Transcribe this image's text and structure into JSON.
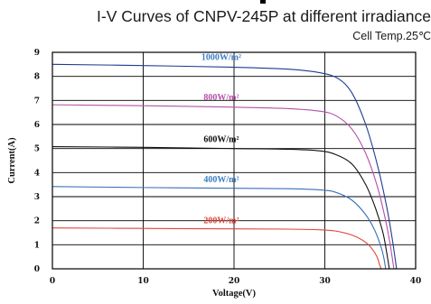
{
  "chart_data": {
    "type": "line",
    "title": "I-V Curves of CNPV-245P at different irradiance",
    "subtitle": "Cell Temp.25℃",
    "xlabel": "Voltage(V)",
    "ylabel": "Current(A)",
    "xlim": [
      0,
      40
    ],
    "ylim": [
      0,
      9
    ],
    "xticks": [
      "0",
      "10",
      "20",
      "30",
      "40"
    ],
    "yticks": [
      "0",
      "1",
      "2",
      "3",
      "4",
      "5",
      "6",
      "7",
      "8",
      "9"
    ],
    "grid": true,
    "series": [
      {
        "name": "1000W/m²",
        "color": "#1f3a93",
        "label_color": "#3b7fc4",
        "isc": 8.5,
        "voc": 37.9,
        "points": [
          [
            0,
            8.5
          ],
          [
            10,
            8.45
          ],
          [
            20,
            8.38
          ],
          [
            26,
            8.3
          ],
          [
            29.5,
            8.15
          ],
          [
            31.5,
            7.9
          ],
          [
            33,
            7.3
          ],
          [
            34.5,
            6.0
          ],
          [
            35.8,
            4.3
          ],
          [
            36.8,
            2.6
          ],
          [
            37.4,
            1.3
          ],
          [
            37.9,
            0
          ]
        ]
      },
      {
        "name": "800W/m²",
        "color": "#b54fa8",
        "label_color": "#b54fa8",
        "isc": 6.82,
        "voc": 37.6,
        "points": [
          [
            0,
            6.82
          ],
          [
            10,
            6.78
          ],
          [
            20,
            6.72
          ],
          [
            26,
            6.66
          ],
          [
            29.5,
            6.55
          ],
          [
            31.3,
            6.35
          ],
          [
            33,
            5.8
          ],
          [
            34.5,
            4.8
          ],
          [
            35.8,
            3.4
          ],
          [
            36.7,
            2.0
          ],
          [
            37.2,
            1.0
          ],
          [
            37.6,
            0
          ]
        ]
      },
      {
        "name": "600W/m²",
        "color": "#111111",
        "label_color": "#111111",
        "isc": 5.08,
        "voc": 37.1,
        "points": [
          [
            0,
            5.08
          ],
          [
            10,
            5.05
          ],
          [
            20,
            5.0
          ],
          [
            26,
            4.97
          ],
          [
            29.5,
            4.9
          ],
          [
            31.2,
            4.75
          ],
          [
            33,
            4.35
          ],
          [
            34.5,
            3.5
          ],
          [
            35.6,
            2.5
          ],
          [
            36.4,
            1.5
          ],
          [
            36.8,
            0.7
          ],
          [
            37.1,
            0
          ]
        ]
      },
      {
        "name": "400W/m²",
        "color": "#3a6fb8",
        "label_color": "#3b7fc4",
        "isc": 3.42,
        "voc": 36.7,
        "points": [
          [
            0,
            3.42
          ],
          [
            10,
            3.38
          ],
          [
            20,
            3.35
          ],
          [
            26,
            3.33
          ],
          [
            29.5,
            3.28
          ],
          [
            31.2,
            3.18
          ],
          [
            33,
            2.85
          ],
          [
            34.5,
            2.25
          ],
          [
            35.5,
            1.6
          ],
          [
            36.2,
            0.9
          ],
          [
            36.5,
            0.45
          ],
          [
            36.7,
            0
          ]
        ]
      },
      {
        "name": "200W/m²",
        "color": "#e0443a",
        "label_color": "#e0443a",
        "isc": 1.7,
        "voc": 36.2,
        "points": [
          [
            0,
            1.7
          ],
          [
            10,
            1.68
          ],
          [
            20,
            1.66
          ],
          [
            26,
            1.65
          ],
          [
            29.5,
            1.62
          ],
          [
            31.2,
            1.57
          ],
          [
            33,
            1.4
          ],
          [
            34.5,
            1.1
          ],
          [
            35.3,
            0.78
          ],
          [
            35.8,
            0.45
          ],
          [
            36.0,
            0.2
          ],
          [
            36.2,
            0
          ]
        ]
      }
    ]
  }
}
